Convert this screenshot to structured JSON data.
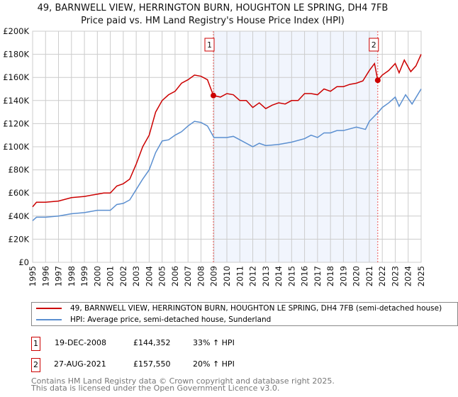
{
  "chart_data": {
    "type": "line",
    "title": "49, BARNWELL VIEW, HERRINGTON BURN, HOUGHTON LE SPRING, DH4 7FB",
    "subtitle": "Price paid vs. HM Land Registry's House Price Index (HPI)",
    "xlim": [
      1995,
      2025
    ],
    "ylim": [
      0,
      200000
    ],
    "yticks": [
      {
        "v": 0,
        "label": "£0"
      },
      {
        "v": 20000,
        "label": "£20K"
      },
      {
        "v": 40000,
        "label": "£40K"
      },
      {
        "v": 60000,
        "label": "£60K"
      },
      {
        "v": 80000,
        "label": "£80K"
      },
      {
        "v": 100000,
        "label": "£100K"
      },
      {
        "v": 120000,
        "label": "£120K"
      },
      {
        "v": 140000,
        "label": "£140K"
      },
      {
        "v": 160000,
        "label": "£160K"
      },
      {
        "v": 180000,
        "label": "£180K"
      },
      {
        "v": 200000,
        "label": "£200K"
      }
    ],
    "xticks": [
      "1995",
      "1996",
      "1997",
      "1998",
      "1999",
      "2000",
      "2001",
      "2002",
      "2003",
      "2004",
      "2005",
      "2006",
      "2007",
      "2008",
      "2009",
      "2010",
      "2011",
      "2012",
      "2013",
      "2014",
      "2015",
      "2016",
      "2017",
      "2018",
      "2019",
      "2020",
      "2021",
      "2022",
      "2023",
      "2024",
      "2025"
    ],
    "grid": true,
    "shaded_range": [
      2008.96,
      2021.65
    ],
    "series": [
      {
        "name": "49, BARNWELL VIEW, HERRINGTON BURN, HOUGHTON LE SPRING, DH4 7FB (semi-detached house)",
        "color": "#cc0000",
        "x": [
          1995,
          1995.3,
          1996,
          1997,
          1998,
          1999,
          2000,
          2000.5,
          2001,
          2001.5,
          2002,
          2002.5,
          2003,
          2003.5,
          2004,
          2004.5,
          2005,
          2005.5,
          2006,
          2006.5,
          2007,
          2007.5,
          2008,
          2008.5,
          2008.96,
          2009.5,
          2010,
          2010.5,
          2011,
          2011.5,
          2012,
          2012.5,
          2013,
          2013.5,
          2014,
          2014.5,
          2015,
          2015.5,
          2016,
          2016.5,
          2017,
          2017.5,
          2018,
          2018.5,
          2019,
          2019.5,
          2020,
          2020.5,
          2021,
          2021.4,
          2021.65,
          2022,
          2022.5,
          2023,
          2023.3,
          2023.7,
          2024.2,
          2024.6,
          2025
        ],
        "y": [
          48000,
          52000,
          52000,
          53000,
          56000,
          57000,
          59000,
          60000,
          60000,
          66000,
          68000,
          72000,
          85000,
          100000,
          110000,
          130000,
          140000,
          145000,
          148000,
          155000,
          158000,
          162000,
          161000,
          158000,
          144352,
          143000,
          146000,
          145000,
          140000,
          140000,
          134000,
          138000,
          133000,
          136000,
          138000,
          137000,
          140000,
          140000,
          146000,
          146000,
          145000,
          150000,
          148000,
          152000,
          152000,
          154000,
          155000,
          157000,
          166000,
          172000,
          157550,
          162000,
          166000,
          172000,
          164000,
          175000,
          165000,
          170000,
          180000
        ]
      },
      {
        "name": "HPI: Average price, semi-detached house, Sunderland",
        "color": "#5b8fd0",
        "x": [
          1995,
          1995.3,
          1996,
          1997,
          1998,
          1999,
          2000,
          2001,
          2001.5,
          2002,
          2002.5,
          2003,
          2003.5,
          2004,
          2004.5,
          2005,
          2005.5,
          2006,
          2006.5,
          2007,
          2007.5,
          2008,
          2008.5,
          2009,
          2010,
          2010.5,
          2011,
          2012,
          2012.5,
          2013,
          2014,
          2015,
          2016,
          2016.5,
          2017,
          2017.5,
          2018,
          2018.5,
          2019,
          2020,
          2020.7,
          2021,
          2021.7,
          2022,
          2022.5,
          2023,
          2023.3,
          2023.8,
          2024.3,
          2025
        ],
        "y": [
          36000,
          39000,
          39000,
          40000,
          42000,
          43000,
          45000,
          45000,
          50000,
          51000,
          54000,
          63000,
          72000,
          80000,
          95000,
          105000,
          106000,
          110000,
          113000,
          118000,
          122000,
          121000,
          118000,
          108000,
          108000,
          109000,
          106000,
          100000,
          103000,
          101000,
          102000,
          104000,
          107000,
          110000,
          108000,
          112000,
          112000,
          114000,
          114000,
          117000,
          115000,
          122000,
          130000,
          134000,
          138000,
          143000,
          135000,
          145000,
          137000,
          150000
        ]
      }
    ],
    "sales": [
      {
        "id": "1",
        "x": 2008.96,
        "y": 144352
      },
      {
        "id": "2",
        "x": 2021.65,
        "y": 157550
      }
    ]
  },
  "table": [
    {
      "id": "1",
      "date": "19-DEC-2008",
      "price": "£144,352",
      "hpi": "33% ↑ HPI"
    },
    {
      "id": "2",
      "date": "27-AUG-2021",
      "price": "£157,550",
      "hpi": "20% ↑ HPI"
    }
  ],
  "footer": [
    "Contains HM Land Registry data © Crown copyright and database right 2025.",
    "This data is licensed under the Open Government Licence v3.0."
  ]
}
